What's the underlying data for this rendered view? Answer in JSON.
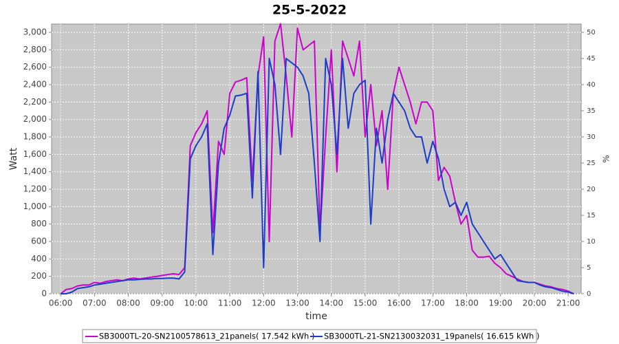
{
  "chart_data": {
    "type": "line",
    "title": "25-5-2022",
    "x_label": "time",
    "y_label": "Watt",
    "y2_label": "%",
    "x": [
      360,
      370,
      380,
      390,
      400,
      410,
      420,
      430,
      440,
      450,
      460,
      470,
      480,
      490,
      500,
      510,
      520,
      530,
      540,
      550,
      560,
      570,
      580,
      590,
      600,
      610,
      620,
      630,
      640,
      650,
      660,
      670,
      680,
      690,
      700,
      710,
      720,
      730,
      740,
      750,
      760,
      770,
      780,
      790,
      800,
      810,
      820,
      830,
      840,
      850,
      860,
      870,
      880,
      890,
      900,
      910,
      920,
      930,
      940,
      950,
      960,
      970,
      980,
      990,
      1000,
      1010,
      1020,
      1030,
      1040,
      1050,
      1060,
      1070,
      1080,
      1090,
      1100,
      1110,
      1120,
      1130,
      1140,
      1150,
      1160,
      1170,
      1180,
      1190,
      1200,
      1210,
      1220,
      1230,
      1240,
      1250,
      1260,
      1270
    ],
    "series": [
      {
        "name": "SB3000TL-20-SN2100578613_21panels( 17.542 kWh )",
        "color": "#cc00cc",
        "values": [
          0,
          50,
          60,
          90,
          100,
          100,
          130,
          120,
          140,
          150,
          160,
          150,
          170,
          180,
          170,
          180,
          190,
          200,
          210,
          220,
          230,
          220,
          300,
          1700,
          1850,
          1950,
          2100,
          700,
          1750,
          1600,
          2300,
          2430,
          2450,
          2480,
          1300,
          2500,
          2950,
          600,
          2900,
          3100,
          2500,
          1800,
          3050,
          2800,
          2850,
          2900,
          700,
          1800,
          2800,
          1400,
          2900,
          2700,
          2500,
          2900,
          1800,
          2400,
          1700,
          2100,
          1200,
          2300,
          2600,
          2400,
          2200,
          1950,
          2200,
          2200,
          2100,
          1300,
          1450,
          1350,
          1050,
          800,
          900,
          500,
          420,
          420,
          430,
          350,
          300,
          230,
          200,
          170,
          140,
          130,
          130,
          110,
          90,
          80,
          60,
          50,
          30,
          0
        ]
      },
      {
        "name": "SB3000TL-21-SN2130032031_19panels( 16.615 kWh )",
        "color": "#1a3cc8",
        "values": [
          0,
          0,
          20,
          60,
          70,
          80,
          100,
          110,
          120,
          130,
          140,
          150,
          160,
          160,
          165,
          170,
          170,
          175,
          175,
          180,
          180,
          170,
          250,
          1550,
          1700,
          1800,
          1950,
          450,
          1500,
          1900,
          2050,
          2270,
          2280,
          2300,
          1100,
          2550,
          300,
          2700,
          2400,
          1600,
          2700,
          2650,
          2600,
          2500,
          2300,
          1500,
          600,
          2700,
          2400,
          1600,
          2700,
          1900,
          2300,
          2400,
          2450,
          800,
          1900,
          1500,
          2000,
          2300,
          2200,
          2100,
          1900,
          1800,
          1800,
          1500,
          1750,
          1550,
          1200,
          1000,
          1050,
          900,
          1050,
          800,
          700,
          600,
          500,
          400,
          450,
          350,
          250,
          150,
          140,
          130,
          130,
          100,
          80,
          70,
          50,
          30,
          20,
          0
        ]
      }
    ],
    "xlim": [
      344,
      1283
    ],
    "xticks": [
      {
        "value": 360,
        "label": "06:00"
      },
      {
        "value": 420,
        "label": "07:00"
      },
      {
        "value": 480,
        "label": "08:00"
      },
      {
        "value": 540,
        "label": "09:00"
      },
      {
        "value": 600,
        "label": "10:00"
      },
      {
        "value": 660,
        "label": "11:00"
      },
      {
        "value": 720,
        "label": "12:00"
      },
      {
        "value": 780,
        "label": "13:00"
      },
      {
        "value": 840,
        "label": "14:00"
      },
      {
        "value": 900,
        "label": "15:00"
      },
      {
        "value": 960,
        "label": "16:00"
      },
      {
        "value": 1020,
        "label": "17:00"
      },
      {
        "value": 1080,
        "label": "18:00"
      },
      {
        "value": 1140,
        "label": "19:00"
      },
      {
        "value": 1200,
        "label": "20:00"
      },
      {
        "value": 1260,
        "label": "21:00"
      }
    ],
    "ylim": [
      0,
      3095
    ],
    "yticks": [
      0,
      200,
      400,
      600,
      800,
      {
        "value": 1000,
        "label": "1,000"
      },
      {
        "value": 1200,
        "label": "1,200"
      },
      {
        "value": 1400,
        "label": "1,400"
      },
      {
        "value": 1600,
        "label": "1,600"
      },
      {
        "value": 1800,
        "label": "1,800"
      },
      {
        "value": 2000,
        "label": "2,000"
      },
      {
        "value": 2200,
        "label": "2,200"
      },
      {
        "value": 2400,
        "label": "2,400"
      },
      {
        "value": 2600,
        "label": "2,600"
      },
      {
        "value": 2800,
        "label": "2,800"
      },
      {
        "value": 3000,
        "label": "3,000"
      }
    ],
    "y2lim": [
      0,
      51.58
    ],
    "y2ticks": [
      0,
      5,
      10,
      15,
      20,
      25,
      30,
      35,
      40,
      45,
      50
    ],
    "grid": true,
    "legend": "bottom"
  }
}
